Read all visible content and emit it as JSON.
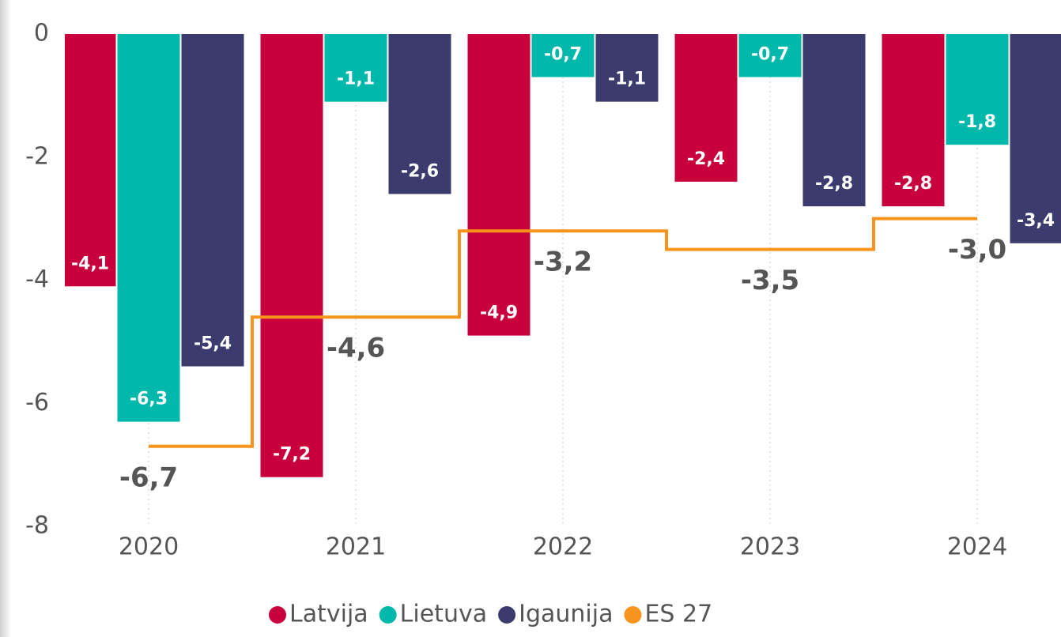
{
  "chart_data": {
    "type": "bar",
    "categories": [
      "2020",
      "2021",
      "2022",
      "2023",
      "2024"
    ],
    "ylim": [
      -8,
      0
    ],
    "yticks": [
      0,
      -2,
      -4,
      -6,
      -8
    ],
    "legend": "bottom",
    "series": [
      {
        "name": "Latvija",
        "color": "#c8003c",
        "values": [
          -4.1,
          -7.2,
          -4.9,
          -2.4,
          -2.8
        ],
        "value_labels": [
          "-4,1",
          "-7,2",
          "-4,9",
          "-2,4",
          "-2,8"
        ]
      },
      {
        "name": "Lietuva",
        "color": "#01b8aa",
        "values": [
          -6.3,
          -1.1,
          -0.7,
          -0.7,
          -1.8
        ],
        "value_labels": [
          "-6,3",
          "-1,1",
          "-0,7",
          "-0,7",
          "-1,8"
        ]
      },
      {
        "name": "Igaunija",
        "color": "#3c3b6e",
        "values": [
          -5.4,
          -2.6,
          -1.1,
          -2.8,
          -3.4
        ],
        "value_labels": [
          "-5,4",
          "-2,6",
          "-1,1",
          "-2,8",
          "-3,4"
        ]
      },
      {
        "name": "ES 27",
        "color": "#f7941d",
        "type": "line",
        "line_shape": "step",
        "values": [
          -6.7,
          -4.6,
          -3.2,
          -3.5,
          -3.0
        ],
        "value_labels": [
          "-6,7",
          "-4,6",
          "-3,2",
          "-3,5",
          "-3,0"
        ]
      }
    ]
  }
}
